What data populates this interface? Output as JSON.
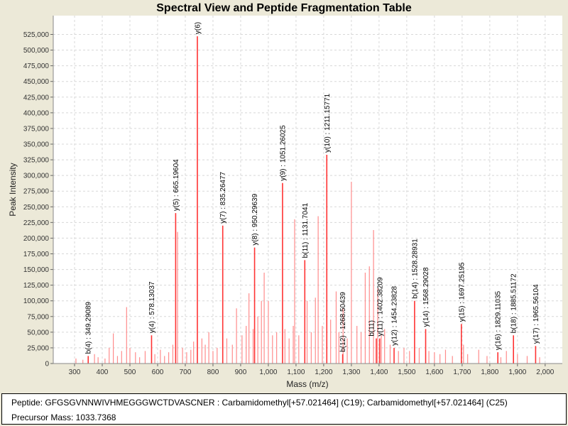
{
  "chart_data": {
    "type": "bar",
    "title": "Spectral View and Peptide Fragmentation Table",
    "xlabel": "Mass (m/z)",
    "ylabel": "Peak Intensity",
    "xlim": [
      223,
      2062
    ],
    "ylim": [
      0,
      555000
    ],
    "xticks": [
      300,
      400,
      500,
      600,
      700,
      800,
      900,
      1000,
      1100,
      1200,
      1300,
      1400,
      1500,
      1600,
      1700,
      1800,
      1900,
      2000
    ],
    "xtick_labels": [
      "300",
      "400",
      "500",
      "600",
      "700",
      "800",
      "900",
      "1,000",
      "1,100",
      "1,200",
      "1,300",
      "1,400",
      "1,500",
      "1,600",
      "1,700",
      "1,800",
      "1,900",
      "2,000"
    ],
    "yticks": [
      0,
      25000,
      50000,
      75000,
      100000,
      125000,
      150000,
      175000,
      200000,
      225000,
      250000,
      275000,
      300000,
      325000,
      350000,
      375000,
      400000,
      425000,
      450000,
      475000,
      500000,
      525000
    ],
    "ytick_labels": [
      "0",
      "25,000",
      "50,000",
      "75,000",
      "100,000",
      "125,000",
      "150,000",
      "175,000",
      "200,000",
      "225,000",
      "250,000",
      "275,000",
      "300,000",
      "325,000",
      "350,000",
      "375,000",
      "400,000",
      "425,000",
      "450,000",
      "475,000",
      "500,000",
      "525,000"
    ],
    "grid": true,
    "annotated_peaks": [
      {
        "mz": 349.29089,
        "intensity": 12000,
        "label": "b(4) : 349.29089"
      },
      {
        "mz": 578.13037,
        "intensity": 45000,
        "label": "y(4) : 578.13037"
      },
      {
        "mz": 665.19604,
        "intensity": 240000,
        "label": "y(5) : 665.19604"
      },
      {
        "mz": 743.6,
        "intensity": 522000,
        "label": "y(6)"
      },
      {
        "mz": 835.26477,
        "intensity": 220000,
        "label": "y(7) : 835.26477"
      },
      {
        "mz": 950.29639,
        "intensity": 185000,
        "label": "y(8) : 950.29639"
      },
      {
        "mz": 1051.26025,
        "intensity": 288000,
        "label": "y(9) : 1051.26025"
      },
      {
        "mz": 1131.7041,
        "intensity": 165000,
        "label": "b(11) : 1131.7041"
      },
      {
        "mz": 1211.15771,
        "intensity": 333000,
        "label": "y(10) : 1211.15771"
      },
      {
        "mz": 1268.50439,
        "intensity": 15000,
        "label": "b(12) : 1268.50439"
      },
      {
        "mz": 1390.0,
        "intensity": 40000,
        "label": "b(11)"
      },
      {
        "mz": 1402.38209,
        "intensity": 40000,
        "label": "y(11) : 1402.38209"
      },
      {
        "mz": 1454.23828,
        "intensity": 25000,
        "label": "y(12) : 1454.23828"
      },
      {
        "mz": 1528.28931,
        "intensity": 100000,
        "label": "b(14) : 1528.28931"
      },
      {
        "mz": 1568.29028,
        "intensity": 55000,
        "label": "y(14) : 1568.29028"
      },
      {
        "mz": 1697.25195,
        "intensity": 63000,
        "label": "y(15) : 1697.25195"
      },
      {
        "mz": 1829.11035,
        "intensity": 18000,
        "label": "y(16) : 1829.11035"
      },
      {
        "mz": 1885.51172,
        "intensity": 45000,
        "label": "b(18) : 1885.51172"
      },
      {
        "mz": 1965.56104,
        "intensity": 28000,
        "label": "y(17) : 1965.56104"
      }
    ],
    "other_peaks": [
      [
        305,
        8000
      ],
      [
        330,
        6000
      ],
      [
        372,
        15000
      ],
      [
        385,
        10000
      ],
      [
        410,
        8000
      ],
      [
        425,
        25000
      ],
      [
        440,
        48000
      ],
      [
        455,
        12000
      ],
      [
        470,
        20000
      ],
      [
        488,
        90000
      ],
      [
        500,
        25000
      ],
      [
        520,
        18000
      ],
      [
        535,
        10000
      ],
      [
        555,
        20000
      ],
      [
        590,
        15000
      ],
      [
        610,
        22000
      ],
      [
        625,
        12000
      ],
      [
        640,
        18000
      ],
      [
        655,
        30000
      ],
      [
        672,
        210000
      ],
      [
        690,
        25000
      ],
      [
        705,
        18000
      ],
      [
        720,
        22000
      ],
      [
        730,
        35000
      ],
      [
        760,
        40000
      ],
      [
        772,
        30000
      ],
      [
        785,
        50000
      ],
      [
        800,
        20000
      ],
      [
        815,
        25000
      ],
      [
        850,
        40000
      ],
      [
        870,
        30000
      ],
      [
        885,
        88000
      ],
      [
        905,
        45000
      ],
      [
        920,
        60000
      ],
      [
        930,
        112000
      ],
      [
        945,
        55000
      ],
      [
        962,
        75000
      ],
      [
        975,
        100000
      ],
      [
        985,
        145000
      ],
      [
        1000,
        100000
      ],
      [
        1015,
        45000
      ],
      [
        1030,
        50000
      ],
      [
        1060,
        55000
      ],
      [
        1075,
        40000
      ],
      [
        1090,
        60000
      ],
      [
        1095,
        230000
      ],
      [
        1110,
        45000
      ],
      [
        1140,
        100000
      ],
      [
        1155,
        50000
      ],
      [
        1170,
        105000
      ],
      [
        1180,
        235000
      ],
      [
        1195,
        60000
      ],
      [
        1225,
        70000
      ],
      [
        1245,
        115000
      ],
      [
        1255,
        50000
      ],
      [
        1270,
        88000
      ],
      [
        1285,
        40000
      ],
      [
        1300,
        290000
      ],
      [
        1320,
        60000
      ],
      [
        1335,
        50000
      ],
      [
        1350,
        145000
      ],
      [
        1365,
        155000
      ],
      [
        1380,
        213000
      ],
      [
        1395,
        120000
      ],
      [
        1408,
        45000
      ],
      [
        1420,
        55000
      ],
      [
        1440,
        30000
      ],
      [
        1470,
        20000
      ],
      [
        1490,
        25000
      ],
      [
        1510,
        20000
      ],
      [
        1545,
        25000
      ],
      [
        1580,
        20000
      ],
      [
        1600,
        18000
      ],
      [
        1620,
        15000
      ],
      [
        1640,
        22000
      ],
      [
        1665,
        12000
      ],
      [
        1705,
        30000
      ],
      [
        1720,
        15000
      ],
      [
        1760,
        22000
      ],
      [
        1790,
        12000
      ],
      [
        1840,
        10000
      ],
      [
        1860,
        20000
      ],
      [
        1900,
        15000
      ],
      [
        1935,
        12000
      ],
      [
        1980,
        10000
      ]
    ]
  },
  "info": {
    "peptide": "Peptide: GFGSGVNNWIVHMEGGGWCTDVASCNER : Carbamidomethyl[+57.021464] (C19); Carbamidomethyl[+57.021464] (C25)",
    "precursor": "Precursor Mass: 1033.7368"
  },
  "colors": {
    "annotated": "#ff3333",
    "other": "#ff8c8c",
    "grid": "#d8d8d8"
  }
}
